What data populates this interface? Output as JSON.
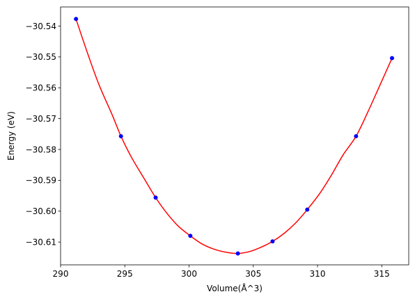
{
  "chart_data": {
    "type": "scatter",
    "title": "",
    "xlabel": "Volume(Å^3)",
    "ylabel": "Energy (eV)",
    "xlim": [
      290.0,
      317.1
    ],
    "ylim": [
      -30.6174,
      -30.5338
    ],
    "x_ticks": [
      290,
      295,
      300,
      305,
      310,
      315
    ],
    "x_tick_labels": [
      "290",
      "295",
      "300",
      "305",
      "310",
      "315"
    ],
    "y_ticks": [
      -30.54,
      -30.55,
      -30.56,
      -30.57,
      -30.58,
      -30.59,
      -30.6,
      -30.61
    ],
    "y_tick_labels": [
      "−30.54",
      "−30.55",
      "−30.56",
      "−30.57",
      "−30.58",
      "−30.59",
      "−30.60",
      "−30.61"
    ],
    "grid": false,
    "legend": "none",
    "points": {
      "color": "#0000ff",
      "x": [
        291.2,
        294.7,
        297.4,
        300.1,
        303.8,
        306.5,
        309.2,
        313.0,
        315.8
      ],
      "y": [
        -30.5377,
        -30.5757,
        -30.5956,
        -30.608,
        -30.6137,
        -30.6098,
        -30.5995,
        -30.5757,
        -30.5504
      ]
    },
    "fit_curve": {
      "color": "#ff0000",
      "type": "line",
      "x": [
        291.2,
        292.1,
        293.0,
        294.0,
        294.7,
        295.5,
        296.5,
        297.4,
        298.3,
        299.2,
        300.1,
        301.0,
        302.0,
        303.0,
        303.8,
        304.7,
        305.6,
        306.5,
        307.4,
        308.3,
        309.2,
        310.2,
        311.1,
        312.0,
        313.0,
        313.9,
        314.8,
        315.8
      ],
      "y": [
        -30.5377,
        -30.5488,
        -30.5591,
        -30.5686,
        -30.5757,
        -30.5824,
        -30.5894,
        -30.5956,
        -30.6008,
        -30.605,
        -30.608,
        -30.6106,
        -30.6124,
        -30.6134,
        -30.6137,
        -30.6131,
        -30.6117,
        -30.6098,
        -30.6072,
        -30.6038,
        -30.5995,
        -30.5941,
        -30.5882,
        -30.5817,
        -30.5757,
        -30.568,
        -30.5597,
        -30.5504
      ]
    }
  }
}
